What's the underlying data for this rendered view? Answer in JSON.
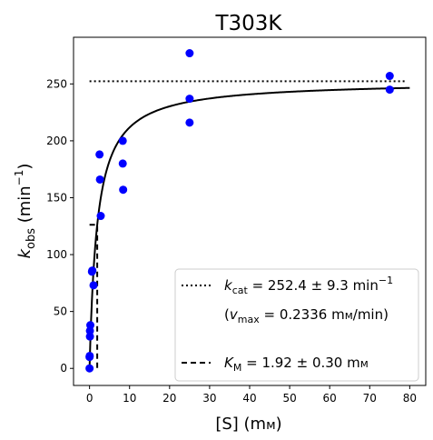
{
  "chart_data": {
    "type": "scatter",
    "title": "T303K",
    "xlabel": {
      "main": "[S] (m",
      "unit": "м",
      "close": ")"
    },
    "ylabel": {
      "k": "k",
      "sub": "obs",
      "open": "(min",
      "sup": "−1",
      "close": ")"
    },
    "xlim": [
      -4,
      84
    ],
    "ylim": [
      -15,
      291
    ],
    "x_ticks": [
      0,
      10,
      20,
      30,
      40,
      50,
      60,
      70,
      80
    ],
    "y_ticks": [
      0,
      50,
      100,
      150,
      200,
      250
    ],
    "grid": false,
    "legend_position": "lower-right",
    "point_color": "#0000ff",
    "series": [
      {
        "kind": "points",
        "x": [
          0,
          0,
          0.05,
          0.1,
          0.1,
          0.2,
          0.6,
          0.7,
          1.0,
          2.5,
          2.6,
          2.8,
          8.3,
          8.3,
          8.4,
          25,
          25,
          25,
          75,
          75
        ],
        "y": [
          0,
          10,
          11,
          28,
          33,
          38,
          85,
          86,
          73,
          188,
          166,
          134,
          200,
          180,
          157,
          277,
          237,
          216,
          257,
          245
        ]
      },
      {
        "kind": "fit",
        "vmax": 252.4,
        "km": 1.92,
        "x_range": [
          0,
          80
        ]
      },
      {
        "kind": "kcat_line",
        "y": 252.4,
        "x_range": [
          0,
          79
        ]
      },
      {
        "kind": "km_line",
        "x": 1.92,
        "y_top": 126.2,
        "x_start": 0
      }
    ],
    "legend": [
      {
        "style": "dotted",
        "k": "k",
        "sub": "cat",
        "text": " = 252.4 ± 9.3 min",
        "sup": "−1"
      },
      {
        "style": "none",
        "text": "(",
        "v": "v",
        "sub": "max",
        "rest": " = 0.2336 m",
        "unit": "м",
        "tail": "/min)"
      },
      {
        "style": "dashed",
        "k": "K",
        "sub": "M",
        "text": " = 1.92 ± 0.30 m",
        "unit": "м"
      }
    ]
  }
}
